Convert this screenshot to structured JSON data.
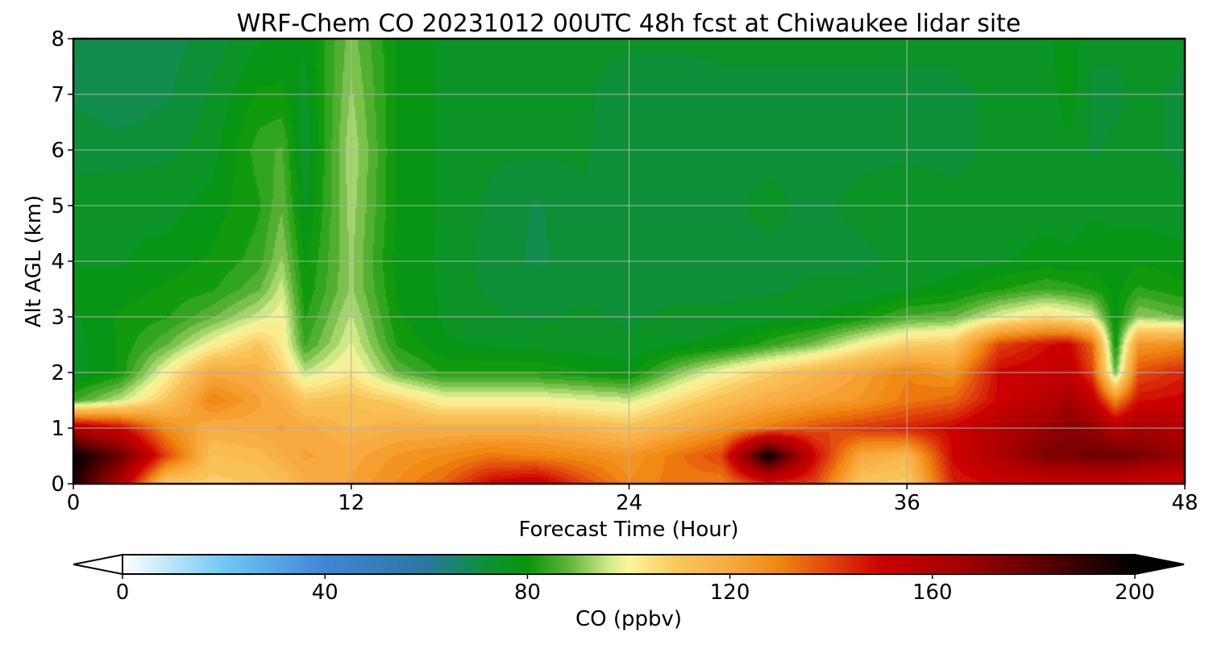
{
  "chart_data": {
    "type": "heatmap",
    "title": "WRF-Chem CO  20231012 00UTC 48h fcst at Chiwaukee lidar site",
    "xlabel": "Forecast Time (Hour)",
    "ylabel": "Alt AGL (km)",
    "xlim": [
      0,
      48
    ],
    "ylim": [
      0,
      8
    ],
    "x_ticks": [
      "0",
      "12",
      "24",
      "36",
      "48"
    ],
    "y_ticks": [
      "0",
      "1",
      "2",
      "3",
      "4",
      "5",
      "6",
      "7",
      "8"
    ],
    "grid": true,
    "x_hours": [
      0,
      2,
      4,
      6,
      8,
      9,
      10,
      12,
      14,
      16,
      18,
      20,
      22,
      24,
      26,
      28,
      30,
      32,
      34,
      36,
      38,
      40,
      42,
      43,
      44,
      45,
      46,
      48
    ],
    "y_km": [
      0,
      0.5,
      1.0,
      1.5,
      2.0,
      2.5,
      3.0,
      3.5,
      4.0,
      5.0,
      6.0,
      7.0,
      8.0
    ],
    "co_ppbv": [
      [
        195,
        160,
        108,
        108,
        110,
        112,
        118,
        122,
        128,
        135,
        150,
        155,
        140,
        128,
        132,
        130,
        145,
        140,
        110,
        108,
        145,
        150,
        152,
        152,
        152,
        152,
        150,
        150
      ],
      [
        200,
        180,
        140,
        112,
        114,
        118,
        122,
        120,
        125,
        128,
        132,
        130,
        128,
        125,
        132,
        140,
        200,
        150,
        120,
        115,
        150,
        162,
        175,
        175,
        178,
        178,
        175,
        168
      ],
      [
        160,
        150,
        128,
        118,
        120,
        122,
        120,
        115,
        118,
        118,
        118,
        118,
        115,
        112,
        118,
        125,
        132,
        138,
        142,
        145,
        150,
        160,
        168,
        172,
        170,
        160,
        165,
        160
      ],
      [
        85,
        95,
        110,
        130,
        122,
        118,
        110,
        112,
        108,
        100,
        100,
        100,
        98,
        96,
        105,
        112,
        118,
        122,
        125,
        132,
        135,
        150,
        158,
        165,
        155,
        128,
        148,
        150
      ],
      [
        75,
        80,
        100,
        120,
        118,
        108,
        95,
        103,
        88,
        82,
        82,
        82,
        80,
        78,
        90,
        100,
        108,
        115,
        122,
        130,
        125,
        150,
        152,
        155,
        140,
        88,
        138,
        145
      ],
      [
        75,
        80,
        88,
        100,
        110,
        102,
        85,
        98,
        82,
        77,
        76,
        75,
        75,
        74,
        76,
        78,
        84,
        90,
        100,
        108,
        110,
        140,
        148,
        150,
        135,
        80,
        125,
        128
      ],
      [
        76,
        80,
        82,
        88,
        96,
        100,
        82,
        95,
        80,
        76,
        74,
        73,
        74,
        73,
        74,
        74,
        75,
        76,
        80,
        86,
        88,
        98,
        105,
        102,
        98,
        78,
        92,
        88
      ],
      [
        78,
        78,
        80,
        82,
        88,
        96,
        80,
        92,
        79,
        76,
        73,
        72,
        73,
        73,
        73,
        73,
        73,
        74,
        74,
        76,
        78,
        82,
        85,
        84,
        82,
        78,
        83,
        80
      ],
      [
        76,
        76,
        78,
        80,
        84,
        92,
        79,
        92,
        78,
        76,
        72,
        70,
        72,
        72,
        73,
        73,
        73,
        73,
        73,
        74,
        75,
        76,
        78,
        77,
        78,
        77,
        79,
        78
      ],
      [
        74,
        76,
        75,
        78,
        82,
        88,
        76,
        93,
        79,
        76,
        73,
        70,
        73,
        73,
        73,
        73,
        74,
        73,
        74,
        75,
        74,
        74,
        75,
        75,
        76,
        76,
        75,
        74
      ],
      [
        73,
        72,
        73,
        75,
        84,
        86,
        74,
        94,
        79,
        76,
        74,
        74,
        74,
        71,
        72,
        73,
        73,
        73,
        73,
        73,
        73,
        74,
        74,
        76,
        73,
        74,
        74,
        73
      ],
      [
        70,
        68,
        70,
        74,
        80,
        80,
        75,
        92,
        79,
        76,
        75,
        75,
        74,
        72,
        72,
        73,
        73,
        73,
        73,
        73,
        73,
        74,
        75,
        78,
        73,
        73,
        74,
        73
      ],
      [
        71,
        68,
        69,
        72,
        76,
        78,
        77,
        90,
        79,
        76,
        75,
        75,
        74,
        74,
        74,
        74,
        74,
        74,
        74,
        74,
        74,
        75,
        76,
        78,
        74,
        74,
        74,
        74
      ]
    ],
    "colorbar": {
      "label": "CO  (ppbv)",
      "range": [
        0,
        200
      ],
      "ticks": [
        "0",
        "40",
        "80",
        "120",
        "160",
        "200"
      ],
      "extend": "both",
      "stops": [
        {
          "v": 0,
          "c": "#ffffff"
        },
        {
          "v": 20,
          "c": "#70c8f4"
        },
        {
          "v": 40,
          "c": "#3f86d6"
        },
        {
          "v": 60,
          "c": "#2b77a0"
        },
        {
          "v": 70,
          "c": "#0f8f45"
        },
        {
          "v": 80,
          "c": "#069606"
        },
        {
          "v": 88,
          "c": "#5db338"
        },
        {
          "v": 96,
          "c": "#cfe98a"
        },
        {
          "v": 100,
          "c": "#fdf59c"
        },
        {
          "v": 110,
          "c": "#f9c55a"
        },
        {
          "v": 120,
          "c": "#f8a93f"
        },
        {
          "v": 130,
          "c": "#ef860e"
        },
        {
          "v": 140,
          "c": "#e0420e"
        },
        {
          "v": 150,
          "c": "#cc0000"
        },
        {
          "v": 165,
          "c": "#a50000"
        },
        {
          "v": 180,
          "c": "#650000"
        },
        {
          "v": 200,
          "c": "#000000"
        }
      ]
    }
  }
}
